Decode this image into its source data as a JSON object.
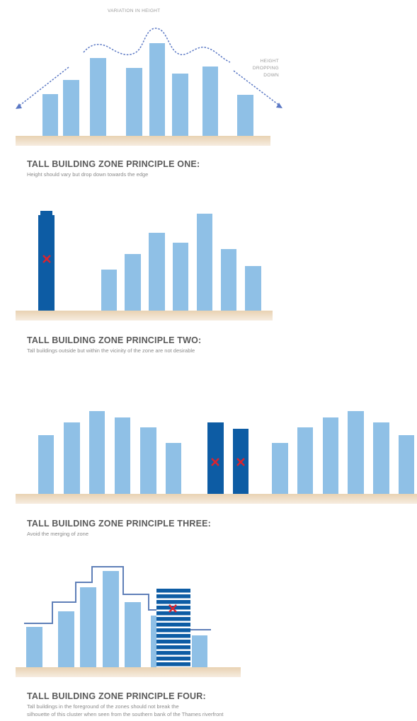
{
  "principles": [
    {
      "title": "TALL BUILDING ZONE PRINCIPLE ONE:",
      "description": "Height should vary but drop down towards the edge",
      "annotations": {
        "top": "VARIATION IN HEIGHT",
        "side_line1": "HEIGHT",
        "side_line2": "DROPPING",
        "side_line3": "DOWN"
      }
    },
    {
      "title": "TALL BUILDING ZONE PRINCIPLE TWO:",
      "description": "Tall buildings outside but within the vicinity of the zone are not desirable"
    },
    {
      "title": "TALL BUILDING ZONE PRINCIPLE THREE:",
      "description": "Avoid the merging of zone"
    },
    {
      "title": "TALL BUILDING ZONE PRINCIPLE FOUR:",
      "description_line1": "Tall buildings in the foreground of the zones should not break the",
      "description_line2": "silhouette of this cluster when seen from the southern bank of the Thames riverfront"
    }
  ],
  "colors": {
    "building_light": "#8fc0e6",
    "building_dark": "#0d5ca4",
    "ground": "#e3c9a4",
    "cross": "#d9242f",
    "outline": "#5f7fb8",
    "annotation_line": "#5b78c4"
  }
}
